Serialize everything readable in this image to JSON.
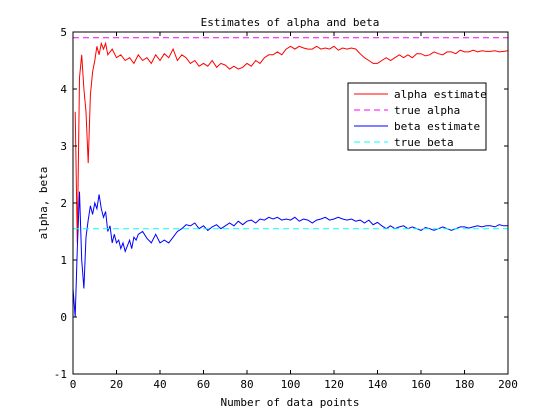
{
  "chart_data": {
    "type": "line",
    "title": "Estimates of alpha and beta",
    "xlabel": "Number of data points",
    "ylabel": "alpha, beta",
    "xlim": [
      0,
      200
    ],
    "ylim": [
      -1,
      5
    ],
    "xticks": [
      0,
      20,
      40,
      60,
      80,
      100,
      120,
      140,
      160,
      180,
      200
    ],
    "yticks": [
      -1,
      0,
      1,
      2,
      3,
      4,
      5
    ],
    "grid": false,
    "legend_position": "top-right",
    "series": [
      {
        "name": "alpha estimate",
        "color": "#ff0000",
        "style": "solid",
        "x": [
          1,
          2,
          3,
          4,
          5,
          6,
          7,
          8,
          9,
          10,
          11,
          12,
          13,
          14,
          15,
          16,
          18,
          20,
          22,
          24,
          26,
          28,
          30,
          32,
          34,
          36,
          38,
          40,
          42,
          44,
          46,
          48,
          50,
          52,
          54,
          56,
          58,
          60,
          62,
          64,
          66,
          68,
          70,
          72,
          74,
          76,
          78,
          80,
          82,
          84,
          86,
          88,
          90,
          92,
          94,
          96,
          98,
          100,
          102,
          104,
          106,
          108,
          110,
          112,
          114,
          116,
          118,
          120,
          122,
          124,
          126,
          128,
          130,
          132,
          134,
          136,
          138,
          140,
          142,
          144,
          146,
          148,
          150,
          152,
          154,
          156,
          158,
          160,
          162,
          164,
          166,
          168,
          170,
          172,
          174,
          176,
          178,
          180,
          182,
          184,
          186,
          188,
          190,
          192,
          194,
          196,
          198,
          200
        ],
        "y": [
          3.6,
          1.3,
          4.2,
          4.6,
          4.0,
          3.6,
          2.7,
          3.9,
          4.3,
          4.5,
          4.75,
          4.6,
          4.8,
          4.7,
          4.8,
          4.6,
          4.7,
          4.55,
          4.6,
          4.5,
          4.55,
          4.45,
          4.6,
          4.5,
          4.55,
          4.45,
          4.6,
          4.5,
          4.62,
          4.55,
          4.7,
          4.5,
          4.6,
          4.55,
          4.45,
          4.5,
          4.4,
          4.45,
          4.4,
          4.5,
          4.38,
          4.45,
          4.42,
          4.35,
          4.4,
          4.35,
          4.38,
          4.45,
          4.4,
          4.5,
          4.45,
          4.55,
          4.6,
          4.6,
          4.65,
          4.6,
          4.7,
          4.75,
          4.7,
          4.75,
          4.72,
          4.7,
          4.7,
          4.75,
          4.7,
          4.72,
          4.7,
          4.75,
          4.68,
          4.72,
          4.7,
          4.72,
          4.7,
          4.62,
          4.55,
          4.5,
          4.45,
          4.45,
          4.5,
          4.55,
          4.5,
          4.55,
          4.6,
          4.55,
          4.6,
          4.55,
          4.62,
          4.62,
          4.58,
          4.6,
          4.65,
          4.62,
          4.6,
          4.65,
          4.65,
          4.62,
          4.68,
          4.65,
          4.65,
          4.68,
          4.65,
          4.67,
          4.66,
          4.66,
          4.67,
          4.65,
          4.66,
          4.67
        ]
      },
      {
        "name": "true alpha",
        "color": "#ff00ff",
        "style": "dashed",
        "x": [
          0,
          200
        ],
        "y": [
          4.9,
          4.9
        ]
      },
      {
        "name": "beta estimate",
        "color": "#0000ff",
        "style": "solid",
        "x": [
          0,
          1,
          2,
          3,
          4,
          5,
          6,
          7,
          8,
          9,
          10,
          11,
          12,
          13,
          14,
          15,
          16,
          17,
          18,
          19,
          20,
          21,
          22,
          23,
          24,
          25,
          26,
          27,
          28,
          29,
          30,
          32,
          34,
          36,
          38,
          40,
          42,
          44,
          46,
          48,
          50,
          52,
          54,
          56,
          58,
          60,
          62,
          64,
          66,
          68,
          70,
          72,
          74,
          76,
          78,
          80,
          82,
          84,
          86,
          88,
          90,
          92,
          94,
          96,
          98,
          100,
          102,
          104,
          106,
          108,
          110,
          112,
          114,
          116,
          118,
          120,
          122,
          124,
          126,
          128,
          130,
          132,
          134,
          136,
          138,
          140,
          142,
          144,
          146,
          148,
          150,
          152,
          154,
          156,
          158,
          160,
          162,
          164,
          166,
          168,
          170,
          172,
          174,
          176,
          178,
          180,
          182,
          184,
          186,
          188,
          190,
          192,
          194,
          196,
          198,
          200
        ],
        "y": [
          0.5,
          0.0,
          1.2,
          2.2,
          1.0,
          0.5,
          1.4,
          1.7,
          1.95,
          1.8,
          2.0,
          1.9,
          2.15,
          1.9,
          1.75,
          1.85,
          1.5,
          1.6,
          1.3,
          1.45,
          1.3,
          1.35,
          1.2,
          1.3,
          1.15,
          1.25,
          1.35,
          1.2,
          1.4,
          1.35,
          1.45,
          1.5,
          1.38,
          1.3,
          1.45,
          1.3,
          1.35,
          1.3,
          1.4,
          1.5,
          1.55,
          1.62,
          1.6,
          1.65,
          1.55,
          1.6,
          1.52,
          1.58,
          1.62,
          1.55,
          1.6,
          1.65,
          1.6,
          1.68,
          1.62,
          1.68,
          1.7,
          1.65,
          1.72,
          1.7,
          1.75,
          1.72,
          1.75,
          1.7,
          1.72,
          1.7,
          1.75,
          1.68,
          1.72,
          1.7,
          1.65,
          1.7,
          1.72,
          1.75,
          1.7,
          1.72,
          1.75,
          1.72,
          1.7,
          1.72,
          1.68,
          1.7,
          1.65,
          1.7,
          1.62,
          1.66,
          1.6,
          1.55,
          1.6,
          1.55,
          1.58,
          1.6,
          1.55,
          1.58,
          1.55,
          1.52,
          1.57,
          1.55,
          1.52,
          1.55,
          1.58,
          1.55,
          1.52,
          1.55,
          1.58,
          1.58,
          1.56,
          1.58,
          1.6,
          1.58,
          1.6,
          1.6,
          1.58,
          1.62,
          1.6,
          1.6
        ]
      },
      {
        "name": "true beta",
        "color": "#00ffff",
        "style": "dashed",
        "x": [
          0,
          200
        ],
        "y": [
          1.55,
          1.55
        ]
      }
    ]
  }
}
